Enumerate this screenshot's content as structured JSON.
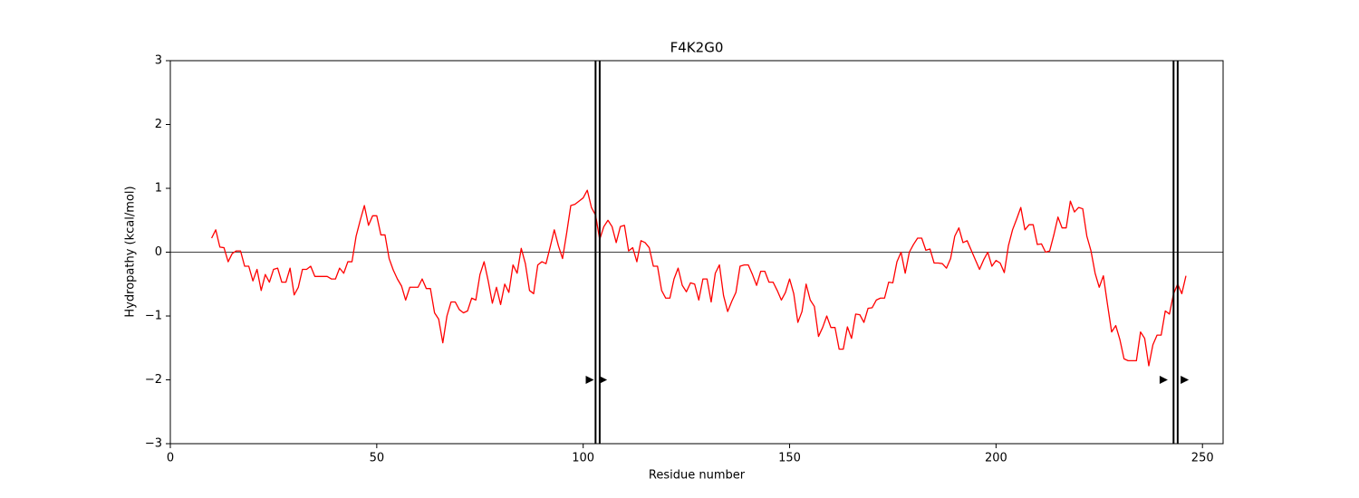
{
  "chart_data": {
    "type": "line",
    "title": "F4K2G0",
    "xlabel": "Residue number",
    "ylabel": "Hydropathy (kcal/mol)",
    "color": "#ff0000",
    "xlim": [
      0,
      255
    ],
    "ylim": [
      -3,
      3
    ],
    "xticks": [
      0,
      50,
      100,
      150,
      200,
      250
    ],
    "yticks": [
      {
        "value": -3,
        "label": "−3"
      },
      {
        "value": -2,
        "label": "−2"
      },
      {
        "value": -1,
        "label": "−1"
      },
      0,
      1,
      2,
      3
    ],
    "hline": 0,
    "vlines": [
      103,
      104,
      243,
      244
    ],
    "markers": {
      "x": [
        101.5,
        104.7,
        240.5,
        245.6
      ],
      "y": [
        -2,
        -2,
        -2,
        -2
      ]
    },
    "x": [
      10,
      11,
      12,
      13,
      14,
      15,
      16,
      17,
      18,
      19,
      20,
      21,
      22,
      23,
      24,
      25,
      26,
      27,
      28,
      29,
      30,
      31,
      32,
      33,
      34,
      35,
      36,
      37,
      38,
      39,
      40,
      41,
      42,
      43,
      44,
      45,
      46,
      47,
      48,
      49,
      50,
      51,
      52,
      53,
      54,
      55,
      56,
      57,
      58,
      59,
      60,
      61,
      62,
      63,
      64,
      65,
      66,
      67,
      68,
      69,
      70,
      71,
      72,
      73,
      74,
      75,
      76,
      77,
      78,
      79,
      80,
      81,
      82,
      83,
      84,
      85,
      86,
      87,
      88,
      89,
      90,
      91,
      92,
      93,
      94,
      95,
      96,
      97,
      98,
      99,
      100,
      101,
      102,
      103,
      104,
      105,
      106,
      107,
      108,
      109,
      110,
      111,
      112,
      113,
      114,
      115,
      116,
      117,
      118,
      119,
      120,
      121,
      122,
      123,
      124,
      125,
      126,
      127,
      128,
      129,
      130,
      131,
      132,
      133,
      134,
      135,
      136,
      137,
      138,
      139,
      140,
      141,
      142,
      143,
      144,
      145,
      146,
      147,
      148,
      149,
      150,
      151,
      152,
      153,
      154,
      155,
      156,
      157,
      158,
      159,
      160,
      161,
      162,
      163,
      164,
      165,
      166,
      167,
      168,
      169,
      170,
      171,
      172,
      173,
      174,
      175,
      176,
      177,
      178,
      179,
      180,
      181,
      182,
      183,
      184,
      185,
      186,
      187,
      188,
      189,
      190,
      191,
      192,
      193,
      194,
      195,
      196,
      197,
      198,
      199,
      200,
      201,
      202,
      203,
      204,
      205,
      206,
      207,
      208,
      209,
      210,
      211,
      212,
      213,
      214,
      215,
      216,
      217,
      218,
      219,
      220,
      221,
      222,
      223,
      224,
      225,
      226,
      227,
      228,
      229,
      230,
      231,
      232,
      233,
      234,
      235,
      236,
      237,
      238,
      239,
      240,
      241,
      242,
      243,
      244,
      245,
      246
    ],
    "values": [
      0.22,
      0.35,
      0.08,
      0.07,
      -0.15,
      -0.02,
      0.02,
      0.02,
      -0.22,
      -0.22,
      -0.45,
      -0.27,
      -0.6,
      -0.35,
      -0.47,
      -0.27,
      -0.25,
      -0.47,
      -0.47,
      -0.25,
      -0.67,
      -0.55,
      -0.27,
      -0.27,
      -0.22,
      -0.38,
      -0.38,
      -0.38,
      -0.38,
      -0.42,
      -0.42,
      -0.25,
      -0.33,
      -0.15,
      -0.15,
      0.25,
      0.5,
      0.73,
      0.42,
      0.57,
      0.57,
      0.27,
      0.27,
      -0.1,
      -0.28,
      -0.42,
      -0.53,
      -0.75,
      -0.55,
      -0.55,
      -0.55,
      -0.42,
      -0.57,
      -0.57,
      -0.95,
      -1.05,
      -1.42,
      -1.0,
      -0.78,
      -0.78,
      -0.9,
      -0.95,
      -0.92,
      -0.72,
      -0.75,
      -0.35,
      -0.15,
      -0.45,
      -0.8,
      -0.55,
      -0.82,
      -0.5,
      -0.63,
      -0.2,
      -0.33,
      0.06,
      -0.18,
      -0.6,
      -0.65,
      -0.2,
      -0.15,
      -0.18,
      0.08,
      0.35,
      0.1,
      -0.1,
      0.3,
      0.73,
      0.75,
      0.8,
      0.85,
      0.97,
      0.7,
      0.58,
      0.2,
      0.4,
      0.5,
      0.4,
      0.15,
      0.4,
      0.42,
      0.02,
      0.07,
      -0.15,
      0.18,
      0.15,
      0.07,
      -0.22,
      -0.22,
      -0.6,
      -0.72,
      -0.72,
      -0.42,
      -0.25,
      -0.52,
      -0.62,
      -0.48,
      -0.5,
      -0.75,
      -0.42,
      -0.42,
      -0.78,
      -0.33,
      -0.2,
      -0.68,
      -0.93,
      -0.77,
      -0.63,
      -0.22,
      -0.2,
      -0.2,
      -0.35,
      -0.52,
      -0.3,
      -0.3,
      -0.47,
      -0.47,
      -0.6,
      -0.75,
      -0.63,
      -0.42,
      -0.65,
      -1.1,
      -0.93,
      -0.5,
      -0.75,
      -0.85,
      -1.32,
      -1.18,
      -1.0,
      -1.18,
      -1.18,
      -1.52,
      -1.52,
      -1.17,
      -1.35,
      -0.97,
      -0.98,
      -1.1,
      -0.88,
      -0.87,
      -0.75,
      -0.72,
      -0.72,
      -0.47,
      -0.48,
      -0.15,
      0.0,
      -0.33,
      0.0,
      0.12,
      0.22,
      0.22,
      0.03,
      0.05,
      -0.17,
      -0.17,
      -0.18,
      -0.25,
      -0.1,
      0.25,
      0.38,
      0.15,
      0.18,
      0.03,
      -0.12,
      -0.27,
      -0.12,
      0.0,
      -0.22,
      -0.13,
      -0.17,
      -0.32,
      0.1,
      0.35,
      0.52,
      0.7,
      0.35,
      0.43,
      0.43,
      0.12,
      0.13,
      0.0,
      0.02,
      0.27,
      0.55,
      0.38,
      0.38,
      0.8,
      0.63,
      0.7,
      0.68,
      0.25,
      0.02,
      -0.33,
      -0.55,
      -0.37,
      -0.82,
      -1.25,
      -1.15,
      -1.37,
      -1.67,
      -1.7,
      -1.7,
      -1.7,
      -1.25,
      -1.35,
      -1.78,
      -1.45,
      -1.3,
      -1.3,
      -0.92,
      -0.97,
      -0.65,
      -0.5,
      -0.65,
      -0.37
    ]
  }
}
